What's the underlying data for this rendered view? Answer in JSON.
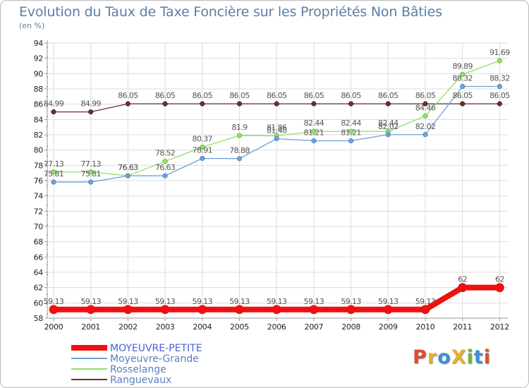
{
  "title": "Evolution du Taux de Taxe Foncière sur les Propriétés Non Bâties",
  "subtitle": "(en %)",
  "logo": {
    "text": "ProXiti",
    "colors": [
      "#d9502f",
      "#e2b02a",
      "#3f8fd2",
      "#e2b02a",
      "#69b53b",
      "#3f8fd2",
      "#d9502f"
    ]
  },
  "colors": {
    "grid": "#dcdcdc",
    "axis": "#999999",
    "title": "#5b7fa6"
  },
  "chart_data": {
    "type": "line",
    "title": "Evolution du Taux de Taxe Foncière sur les Propriétés Non Bâties",
    "ylabel": "(en %)",
    "xlabel": "",
    "ylim": [
      58,
      94
    ],
    "yticks": [
      "58",
      "60",
      "62",
      "64",
      "66",
      "68",
      "70",
      "72",
      "74",
      "76",
      "78",
      "80",
      "82",
      "84",
      "86",
      "88",
      "90",
      "92",
      "94"
    ],
    "categories": [
      "2000",
      "2001",
      "2002",
      "2003",
      "2004",
      "2005",
      "2006",
      "2007",
      "2008",
      "2009",
      "2010",
      "2011",
      "2012"
    ],
    "grid": true,
    "legend": "bottom-left",
    "series": [
      {
        "name": "MOYEUVRE-PETITE",
        "color": "#ee1111",
        "width": 8,
        "values": [
          59.13,
          59.13,
          59.13,
          59.13,
          59.13,
          59.13,
          59.13,
          59.13,
          59.13,
          59.13,
          59.13,
          62,
          62
        ],
        "labels": [
          "59.13",
          "59.13",
          "59.13",
          "59.13",
          "59.13",
          "59.13",
          "59.13",
          "59.13",
          "59.13",
          "59.13",
          "59.13",
          "62",
          "62"
        ]
      },
      {
        "name": "Moyeuvre-Grande",
        "color": "#6ea2d6",
        "width": 1.3,
        "values": [
          75.81,
          75.81,
          76.63,
          76.63,
          78.91,
          78.88,
          81.48,
          81.21,
          81.21,
          82.02,
          82.02,
          88.32,
          88.32
        ],
        "labels": [
          "75.81",
          "75.81",
          "76.63",
          "76.63",
          "78.91",
          "78.88",
          "81.48",
          "81.21",
          "81.21",
          "82.02",
          "82.02",
          "88.32",
          "88.32"
        ]
      },
      {
        "name": "Rosselange",
        "color": "#8fe066",
        "width": 1.3,
        "values": [
          77.13,
          77.13,
          76.63,
          78.52,
          80.37,
          81.9,
          81.86,
          82.44,
          82.44,
          82.44,
          84.46,
          89.89,
          91.69
        ],
        "labels": [
          "77.13",
          "77.13",
          "76.63",
          "78.52",
          "80.37",
          "81.9",
          "81.86",
          "82.44",
          "82.44",
          "82.44",
          "84.46",
          "89.89",
          "91.69"
        ]
      },
      {
        "name": "Ranguevaux",
        "color": "#6b2f2f",
        "width": 1.3,
        "values": [
          84.99,
          84.99,
          86.05,
          86.05,
          86.05,
          86.05,
          86.05,
          86.05,
          86.05,
          86.05,
          86.05,
          86.05,
          86.05
        ],
        "labels": [
          "84.99",
          "84.99",
          "86.05",
          "86.05",
          "86.05",
          "86.05",
          "86.05",
          "86.05",
          "86.05",
          "86.05",
          "86.05",
          "86.05",
          "86.05"
        ]
      }
    ]
  }
}
